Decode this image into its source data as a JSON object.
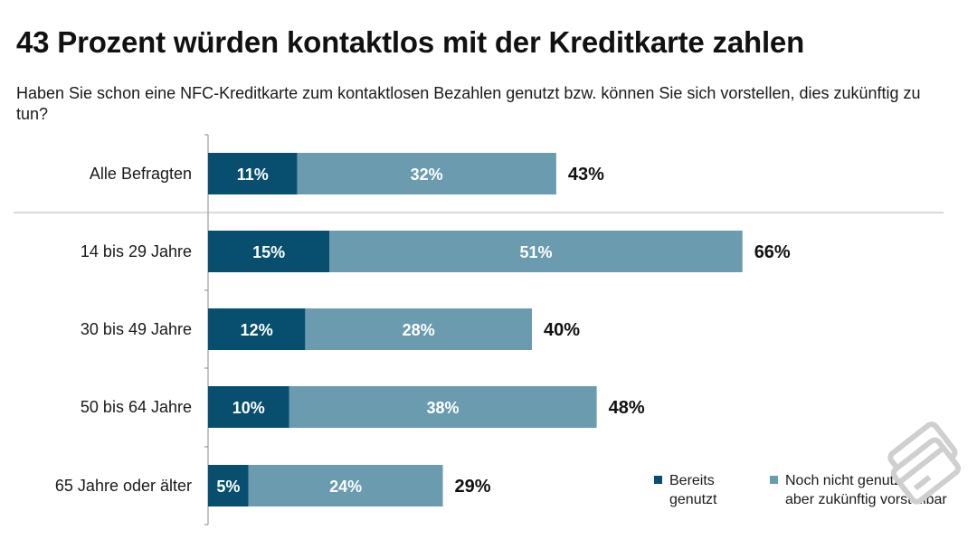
{
  "title": "43 Prozent würden kontaktlos mit der Kreditkarte zahlen",
  "subtitle": "Haben Sie schon eine NFC-Kreditkarte zum kontaktlosen Bezahlen genutzt bzw. können Sie sich vorstellen, dies zukünftig zu tun?",
  "colors": {
    "series_used": "#084f6f",
    "series_imaginable": "#6a9bae",
    "axis": "#888888"
  },
  "logo_icon": "credit-card-icon",
  "chart_data": {
    "type": "bar",
    "orientation": "horizontal",
    "stacked": true,
    "unit": "%",
    "xlim": [
      0,
      100
    ],
    "grid": false,
    "legend_position": "bottom-right",
    "categories": [
      "Alle Befragten",
      "14 bis 29 Jahre",
      "30 bis 49 Jahre",
      "50 bis 64 Jahre",
      "65 Jahre oder älter"
    ],
    "series": [
      {
        "name": "Bereits genutzt",
        "legend_lines": [
          "Bereits",
          "genutzt"
        ],
        "values": [
          11,
          15,
          12,
          10,
          5
        ],
        "labels": [
          "11%",
          "15%",
          "12%",
          "10%",
          "5%"
        ]
      },
      {
        "name": "Noch nicht genutzt, aber zukünftig vorstellbar",
        "legend_lines": [
          "Noch nicht genutzt,",
          "aber zukünftig vorstellbar"
        ],
        "values": [
          32,
          51,
          28,
          38,
          24
        ],
        "labels": [
          "32%",
          "51%",
          "28%",
          "38%",
          "24%"
        ]
      }
    ],
    "totals": [
      43,
      66,
      40,
      48,
      29
    ],
    "total_labels": [
      "43%",
      "66%",
      "40%",
      "48%",
      "29%"
    ]
  }
}
